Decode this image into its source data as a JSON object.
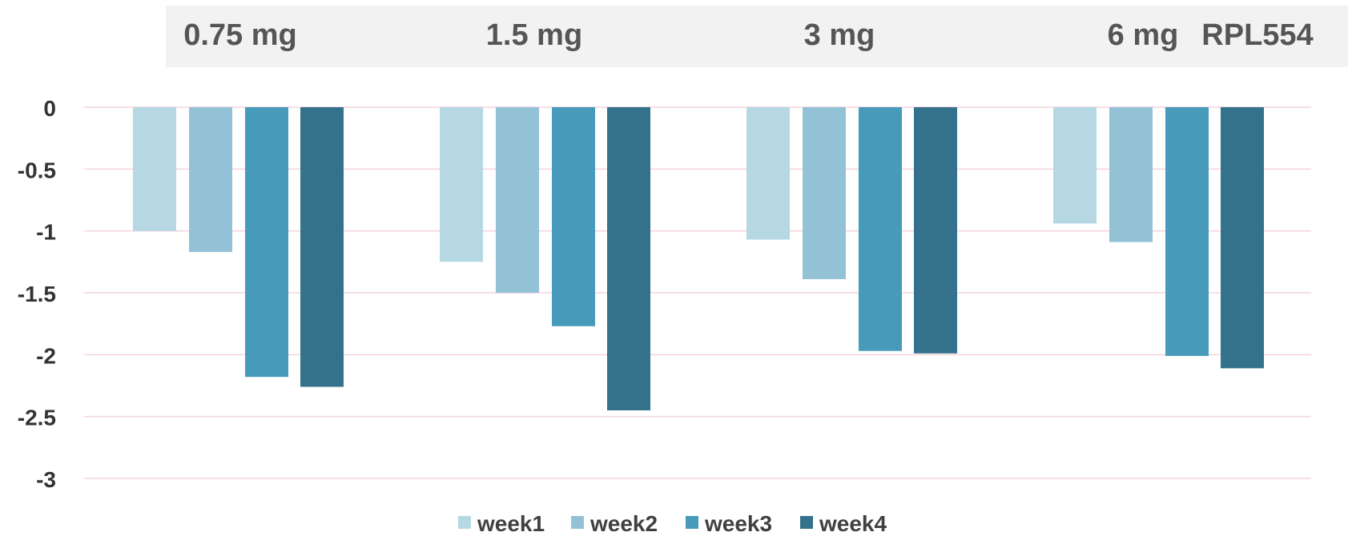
{
  "chart_data": {
    "type": "bar",
    "title": "",
    "xlabel": "",
    "ylabel": "",
    "header_label": "RPL554",
    "categories": [
      "0.75 mg",
      "1.5 mg",
      "3 mg",
      "6 mg"
    ],
    "series": [
      {
        "name": "week1",
        "color": "#b5d8e3",
        "values": [
          -1.0,
          -1.25,
          -1.07,
          -0.94
        ]
      },
      {
        "name": "week2",
        "color": "#93c2d6",
        "values": [
          -1.17,
          -1.5,
          -1.39,
          -1.09
        ]
      },
      {
        "name": "week3",
        "color": "#479aba",
        "values": [
          -2.18,
          -1.77,
          -1.97,
          -2.01
        ]
      },
      {
        "name": "week4",
        "color": "#34728b",
        "values": [
          -2.26,
          -2.45,
          -1.99,
          -2.11
        ]
      }
    ],
    "ylim": [
      -3,
      0
    ],
    "yticks": [
      0,
      -0.5,
      -1,
      -1.5,
      -2,
      -2.5,
      -3
    ],
    "ytick_labels": [
      "0",
      "-0.5",
      "-1",
      "-1.5",
      "-2",
      "-2.5",
      "-3"
    ],
    "grid": true,
    "grid_color": "#f3d3df",
    "header_band_color": "#f2f2f2",
    "legend_position": "bottom"
  }
}
